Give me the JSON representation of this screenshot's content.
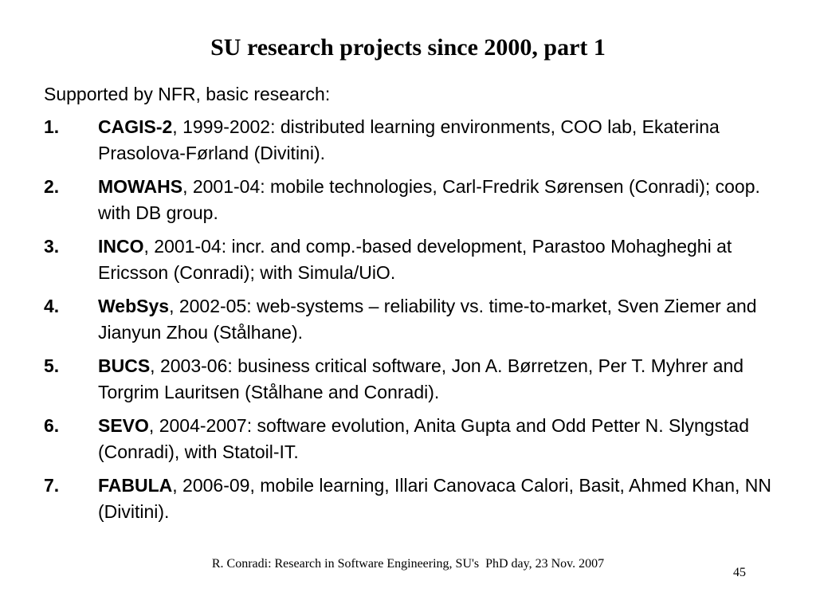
{
  "slide": {
    "title": "SU research projects since 2000, part 1",
    "intro": "Supported by NFR, basic research:",
    "items": [
      {
        "number": "1.",
        "name": "CAGIS-2",
        "text": ", 1999-2002: distributed learning environments, COO lab, Ekaterina Prasolova-Førland (Divitini)."
      },
      {
        "number": "2.",
        "name": "MOWAHS",
        "text": ", 2001-04: mobile technologies, Carl-Fredrik Sørensen (Conradi); coop. with DB group."
      },
      {
        "number": "3.",
        "name": "INCO",
        "text": ", 2001-04: incr. and comp.-based development, Parastoo Mohagheghi at Ericsson (Conradi); with Simula/UiO."
      },
      {
        "number": "4.",
        "name": "WebSys",
        "text": ", 2002-05: web-systems – reliability vs. time-to-market, Sven Ziemer and Jianyun Zhou (Stålhane)."
      },
      {
        "number": "5.",
        "name": "BUCS",
        "text": ", 2003-06: business critical software, Jon A. Børretzen, Per T. Myhrer and Torgrim Lauritsen (Stålhane and Conradi)."
      },
      {
        "number": "6.",
        "name": "SEVO",
        "text": ", 2004-2007: software evolution, Anita Gupta and Odd Petter N. Slyngstad (Conradi), with Statoil-IT."
      },
      {
        "number": "7.",
        "name": "FABULA",
        "text": ", 2006-09, mobile learning, Illari Canovaca Calori, Basit, Ahmed Khan, NN (Divitini)."
      }
    ],
    "footer": "R. Conradi: Research in Software Engineering, SU's  PhD day, 23 Nov. 2007",
    "page_number": "45"
  }
}
